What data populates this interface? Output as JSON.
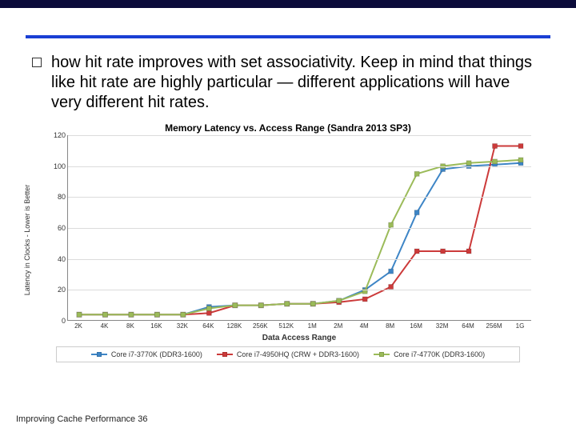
{
  "bullet_text": "how hit rate improves with set associativity. Keep in mind that things like hit rate are highly particular — different applications will have very different hit rates.",
  "footer": "Improving Cache Performance 36",
  "chart": {
    "type": "line",
    "title": "Memory Latency vs. Access Range (Sandra 2013 SP3)",
    "y_axis_label": "Latency in Clocks - Lower is Better",
    "x_axis_label": "Data Access Range",
    "ylim": [
      0,
      120
    ],
    "ytick_step": 20,
    "background_color": "#ffffff",
    "grid_color": "#dcdcdc",
    "axis_color": "#888888",
    "categories": [
      "2K",
      "4K",
      "8K",
      "16K",
      "32K",
      "64K",
      "128K",
      "256K",
      "512K",
      "1M",
      "2M",
      "4M",
      "8M",
      "16M",
      "32M",
      "64M",
      "256M",
      "1G"
    ],
    "line_width": 2,
    "marker_size": 6,
    "marker_style": "square",
    "series": [
      {
        "name": "Core i7-3770K (DDR3-1600)",
        "color": "#3d85c6",
        "values": [
          4,
          4,
          4,
          4,
          4,
          9,
          10,
          10,
          11,
          11,
          13,
          20,
          32,
          70,
          98,
          100,
          101,
          102
        ]
      },
      {
        "name": "Core i7-4950HQ (CRW + DDR3-1600)",
        "color": "#cc3a3a",
        "values": [
          4,
          4,
          4,
          4,
          4,
          5,
          10,
          10,
          11,
          11,
          12,
          14,
          22,
          45,
          45,
          45,
          113,
          113
        ]
      },
      {
        "name": "Core i7-4770K (DDR3-1600)",
        "color": "#9bbb59",
        "values": [
          4,
          4,
          4,
          4,
          4,
          8,
          10,
          10,
          11,
          11,
          13,
          19,
          62,
          95,
          100,
          102,
          103,
          104
        ]
      }
    ]
  }
}
